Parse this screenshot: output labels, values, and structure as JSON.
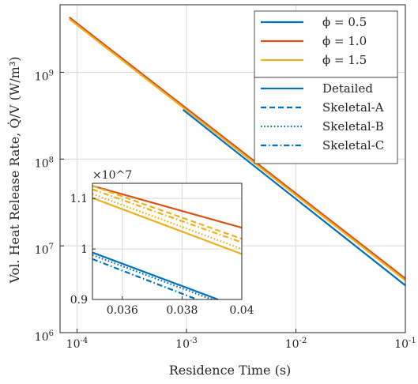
{
  "chart_data": [
    {
      "type": "line",
      "xlabel": "Residence Time (s)",
      "ylabel": "Vol. Heat Release Rate, Q̇/V (W/m³)",
      "x_scale": "log",
      "y_scale": "log",
      "xlim": [
        7e-05,
        0.1
      ],
      "ylim": [
        1000000,
        6000000000
      ],
      "x_ticks": [
        {
          "value": 0.0001,
          "base": "10",
          "exp": "-4"
        },
        {
          "value": 0.001,
          "base": "10",
          "exp": "-3"
        },
        {
          "value": 0.01,
          "base": "10",
          "exp": "-2"
        },
        {
          "value": 0.1,
          "base": "10",
          "exp": "-1"
        }
      ],
      "y_ticks": [
        {
          "value": 1000000,
          "base": "10",
          "exp": "6"
        },
        {
          "value": 10000000,
          "base": "10",
          "exp": "7"
        },
        {
          "value": 100000000,
          "base": "10",
          "exp": "8"
        },
        {
          "value": 1000000000,
          "base": "10",
          "exp": "9"
        }
      ],
      "grid": true,
      "legend_position": "top-right",
      "legend_colors": [
        {
          "label": "ϕ = 0.5",
          "color": "#0072BD"
        },
        {
          "label": "ϕ = 1.0",
          "color": "#D95319"
        },
        {
          "label": "ϕ = 1.5",
          "color": "#EDB120"
        }
      ],
      "legend_styles": [
        {
          "label": "Detailed",
          "dash": "solid"
        },
        {
          "label": "Skeletal-A",
          "dash": "dashed"
        },
        {
          "label": "Skeletal-B",
          "dash": "dotted"
        },
        {
          "label": "Skeletal-C",
          "dash": "dashdot"
        }
      ],
      "series": [
        {
          "phi": "0.5",
          "model": "Detailed",
          "color": "#0072BD",
          "dash": "solid",
          "x": [
            0.00093,
            0.1
          ],
          "y": [
            370000000,
            3500000
          ]
        },
        {
          "phi": "1.0",
          "model": "Detailed",
          "color": "#D95319",
          "dash": "solid",
          "x": [
            8.5e-05,
            0.1
          ],
          "y": [
            4300000000,
            4200000
          ]
        },
        {
          "phi": "1.5",
          "model": "Detailed",
          "color": "#EDB120",
          "dash": "solid",
          "x": [
            8.5e-05,
            0.1
          ],
          "y": [
            4100000000,
            4000000
          ]
        }
      ]
    },
    {
      "type": "line",
      "inset": true,
      "multiplier": "×10^7",
      "x_scale": "linear",
      "y_scale": "linear",
      "xlim": [
        0.035,
        0.04
      ],
      "ylim": [
        0.9,
        1.13
      ],
      "x_ticks": [
        "0.036",
        "0.038",
        "0.04"
      ],
      "y_ticks": [
        "0.9",
        "1",
        "1.1"
      ],
      "grid": true,
      "series": [
        {
          "phi": "1.0",
          "model": "Detailed",
          "color": "#D95319",
          "dash": "solid",
          "x": [
            0.035,
            0.04
          ],
          "y": [
            1.125,
            1.042
          ]
        },
        {
          "phi": "1.5",
          "model": "Skeletal-A",
          "color": "#EDB120",
          "dash": "dashed",
          "x": [
            0.035,
            0.04
          ],
          "y": [
            1.125,
            1.02
          ]
        },
        {
          "phi": "1.5",
          "model": "Skeletal-C",
          "color": "#EDB120",
          "dash": "dashdot",
          "x": [
            0.035,
            0.04
          ],
          "y": [
            1.118,
            1.013
          ]
        },
        {
          "phi": "1.5",
          "model": "Skeletal-B",
          "color": "#EDB120",
          "dash": "dotted",
          "x": [
            0.035,
            0.04
          ],
          "y": [
            1.109,
            1.0
          ]
        },
        {
          "phi": "1.5",
          "model": "Detailed",
          "color": "#EDB120",
          "dash": "solid",
          "x": [
            0.035,
            0.04
          ],
          "y": [
            1.101,
            0.99
          ]
        },
        {
          "phi": "0.5",
          "model": "Detailed",
          "color": "#0072BD",
          "dash": "solid",
          "x": [
            0.035,
            0.0392
          ],
          "y": [
            0.993,
            0.9
          ]
        },
        {
          "phi": "0.5",
          "model": "Skeletal-B",
          "color": "#0072BD",
          "dash": "dotted",
          "x": [
            0.035,
            0.039
          ],
          "y": [
            0.988,
            0.9
          ]
        },
        {
          "phi": "0.5",
          "model": "Skeletal-C",
          "color": "#0072BD",
          "dash": "dashdot",
          "x": [
            0.035,
            0.0385
          ],
          "y": [
            0.98,
            0.9
          ]
        }
      ]
    }
  ]
}
